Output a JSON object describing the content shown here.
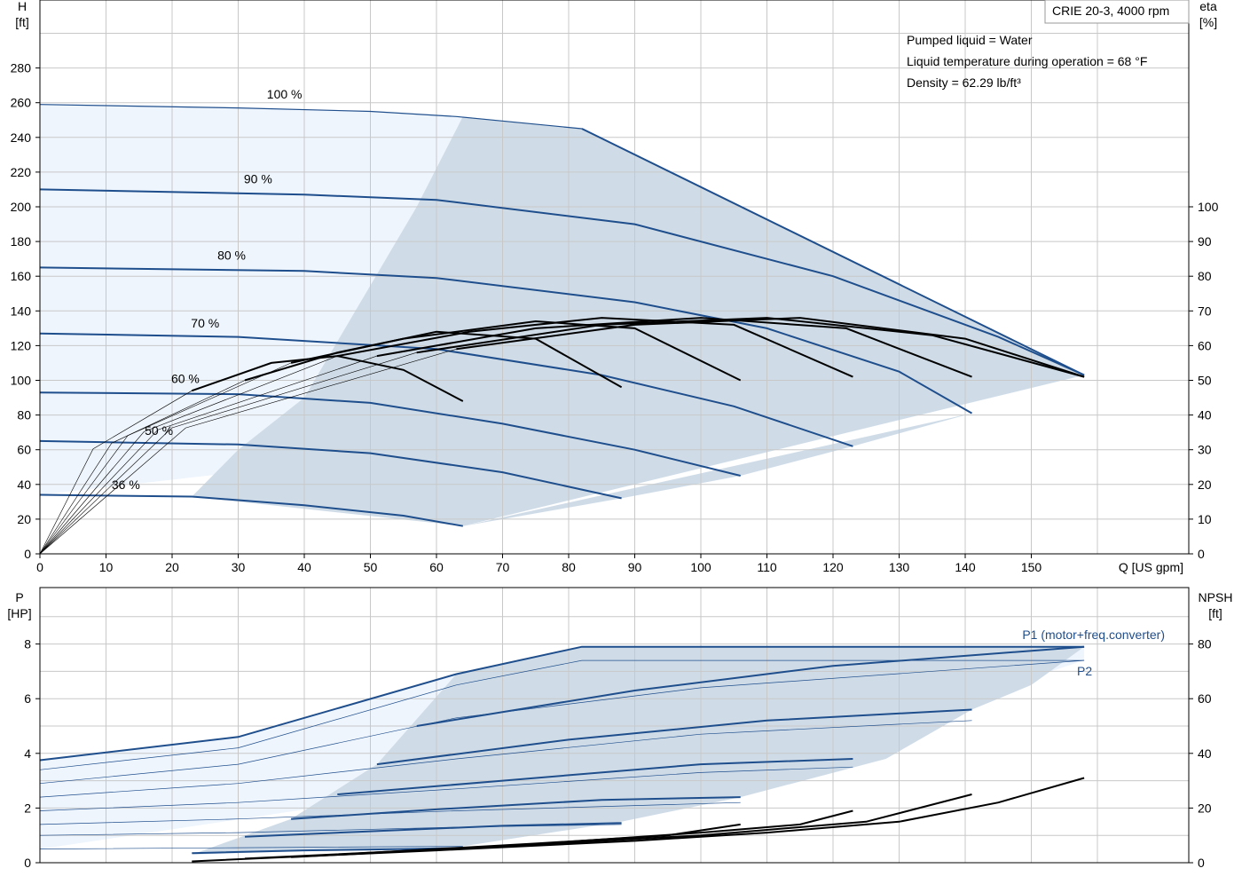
{
  "pump_model": "CRIE 20-3, 4000 rpm",
  "conditions": [
    "Pumped liquid = Water",
    "Liquid temperature during operation = 68 °F",
    "Density = 62.29 lb/ft³"
  ],
  "colors": {
    "curve_blue": "#1f4e8c",
    "area_dark": "#cfdce8",
    "area_light": "#eef5fd",
    "grid": "#c8c8c8"
  },
  "chart_data": [
    {
      "type": "line",
      "title": "",
      "x_axis": {
        "label": "Q [US gpm]",
        "range": [
          0,
          170
        ],
        "ticks": [
          0,
          10,
          20,
          30,
          40,
          50,
          60,
          70,
          80,
          90,
          100,
          110,
          120,
          130,
          140,
          150
        ]
      },
      "y_axis_left": {
        "label_top": "H",
        "label_unit": "[ft]",
        "range": [
          0,
          300
        ],
        "ticks": [
          0,
          20,
          40,
          60,
          80,
          100,
          120,
          140,
          160,
          180,
          200,
          220,
          240,
          260,
          280
        ]
      },
      "y_axis_right": {
        "label_top": "eta",
        "label_unit": "[%]",
        "range": [
          0,
          150
        ],
        "ticks": [
          0,
          10,
          20,
          30,
          40,
          50,
          60,
          70,
          80,
          90,
          100
        ]
      },
      "speed_labels": [
        {
          "text": "100 %",
          "x": 37,
          "y": 265
        },
        {
          "text": "90 %",
          "x": 33,
          "y": 216
        },
        {
          "text": "80 %",
          "x": 29,
          "y": 172
        },
        {
          "text": "70 %",
          "x": 25,
          "y": 133
        },
        {
          "text": "60 %",
          "x": 22,
          "y": 101
        },
        {
          "text": "50 %",
          "x": 18,
          "y": 71
        },
        {
          "text": "36 %",
          "x": 13,
          "y": 40
        }
      ],
      "head_curves": [
        {
          "speed": "100 %",
          "shut_off": 259,
          "points": [
            [
              0,
              259
            ],
            [
              30,
              257
            ],
            [
              50,
              255
            ],
            [
              63,
              252
            ],
            [
              82,
              245
            ]
          ],
          "tail": [
            [
              82,
              245
            ],
            [
              158,
              103
            ]
          ]
        },
        {
          "speed": "90 %",
          "points": [
            [
              0,
              210
            ],
            [
              40,
              207
            ],
            [
              60,
              204
            ],
            [
              90,
              190
            ],
            [
              120,
              160
            ],
            [
              145,
              125
            ],
            [
              158,
              103
            ]
          ]
        },
        {
          "speed": "80 %",
          "points": [
            [
              0,
              165
            ],
            [
              40,
              163
            ],
            [
              60,
              159
            ],
            [
              90,
              145
            ],
            [
              110,
              130
            ],
            [
              130,
              105
            ],
            [
              141,
              81
            ]
          ]
        },
        {
          "speed": "70 %",
          "points": [
            [
              0,
              127
            ],
            [
              30,
              125
            ],
            [
              60,
              118
            ],
            [
              85,
              103
            ],
            [
              105,
              85
            ],
            [
              123,
              62
            ]
          ]
        },
        {
          "speed": "60 %",
          "points": [
            [
              0,
              93
            ],
            [
              30,
              92
            ],
            [
              50,
              87
            ],
            [
              70,
              75
            ],
            [
              90,
              60
            ],
            [
              106,
              45
            ]
          ]
        },
        {
          "speed": "50 %",
          "points": [
            [
              0,
              65
            ],
            [
              30,
              63
            ],
            [
              50,
              58
            ],
            [
              70,
              47
            ],
            [
              88,
              32
            ]
          ]
        },
        {
          "speed": "36 %",
          "points": [
            [
              0,
              34
            ],
            [
              23,
              33
            ],
            [
              40,
              28
            ],
            [
              55,
              22
            ],
            [
              64,
              16
            ]
          ]
        }
      ],
      "eta_curves": [
        {
          "speed": "36 %",
          "points": [
            [
              23,
              47
            ],
            [
              35,
              55
            ],
            [
              45,
              57
            ],
            [
              55,
              53
            ],
            [
              64,
              44
            ]
          ]
        },
        {
          "speed": "50 %",
          "points": [
            [
              31,
              50
            ],
            [
              45,
              58
            ],
            [
              60,
              64
            ],
            [
              75,
              62
            ],
            [
              88,
              48
            ]
          ]
        },
        {
          "speed": "60 %",
          "points": [
            [
              38,
              55
            ],
            [
              55,
              62
            ],
            [
              75,
              67
            ],
            [
              90,
              65
            ],
            [
              106,
              50
            ]
          ]
        },
        {
          "speed": "70 %",
          "points": [
            [
              45,
              57
            ],
            [
              65,
              64
            ],
            [
              85,
              68
            ],
            [
              105,
              66
            ],
            [
              123,
              51
            ]
          ]
        },
        {
          "speed": "80 %",
          "points": [
            [
              51,
              57
            ],
            [
              75,
              65
            ],
            [
              100,
              68
            ],
            [
              122,
              65
            ],
            [
              141,
              51
            ]
          ]
        },
        {
          "speed": "90 %",
          "points": [
            [
              57,
              58
            ],
            [
              85,
              66
            ],
            [
              110,
              68
            ],
            [
              135,
              63
            ],
            [
              158,
              51
            ]
          ]
        },
        {
          "speed": "100 %",
          "points": [
            [
              63,
              59
            ],
            [
              90,
              66
            ],
            [
              115,
              68
            ],
            [
              140,
              62
            ],
            [
              158,
              51
            ]
          ]
        }
      ]
    },
    {
      "type": "line",
      "title": "",
      "x_axis": {
        "range": [
          0,
          170
        ],
        "ticks": []
      },
      "y_axis_left": {
        "label_top": "P",
        "label_unit": "[HP]",
        "range": [
          0,
          9
        ],
        "ticks": [
          0,
          2,
          4,
          6,
          8
        ]
      },
      "y_axis_right": {
        "label_top": "NPSH",
        "label_unit": "[ft]",
        "range": [
          0,
          90
        ],
        "ticks": [
          0,
          20,
          40,
          60,
          80
        ]
      },
      "series_labels": [
        {
          "text": "P1 (motor+freq.converter)"
        },
        {
          "text": "P2"
        }
      ],
      "p1_curves": [
        {
          "speed": "100 %",
          "points": [
            [
              0,
              3.75
            ],
            [
              30,
              4.6
            ],
            [
              63,
              6.9
            ],
            [
              82,
              7.9
            ],
            [
              158,
              7.9
            ]
          ]
        },
        {
          "speed": "90 %",
          "points": [
            [
              57,
              5.0
            ],
            [
              90,
              6.3
            ],
            [
              120,
              7.2
            ],
            [
              158,
              7.9
            ]
          ]
        },
        {
          "speed": "80 %",
          "points": [
            [
              51,
              3.6
            ],
            [
              80,
              4.5
            ],
            [
              110,
              5.2
            ],
            [
              141,
              5.6
            ]
          ]
        },
        {
          "speed": "70 %",
          "points": [
            [
              45,
              2.5
            ],
            [
              70,
              3.0
            ],
            [
              100,
              3.6
            ],
            [
              123,
              3.8
            ]
          ]
        },
        {
          "speed": "60 %",
          "points": [
            [
              38,
              1.6
            ],
            [
              60,
              1.95
            ],
            [
              85,
              2.3
            ],
            [
              106,
              2.4
            ]
          ]
        },
        {
          "speed": "50 %",
          "points": [
            [
              31,
              0.95
            ],
            [
              50,
              1.15
            ],
            [
              70,
              1.35
            ],
            [
              88,
              1.45
            ]
          ]
        },
        {
          "speed": "36 %",
          "points": [
            [
              23,
              0.35
            ],
            [
              40,
              0.45
            ],
            [
              55,
              0.5
            ],
            [
              64,
              0.55
            ]
          ]
        }
      ],
      "p2_curves": [
        {
          "speed": "100 %",
          "points": [
            [
              0,
              3.4
            ],
            [
              30,
              4.2
            ],
            [
              63,
              6.5
            ],
            [
              82,
              7.4
            ],
            [
              158,
              7.4
            ]
          ]
        },
        {
          "speed": "90 %",
          "points": [
            [
              0,
              2.9
            ],
            [
              30,
              3.6
            ],
            [
              63,
              5.3
            ],
            [
              100,
              6.4
            ],
            [
              158,
              7.4
            ]
          ]
        },
        {
          "speed": "80 %",
          "points": [
            [
              0,
              2.4
            ],
            [
              30,
              2.9
            ],
            [
              63,
              3.8
            ],
            [
              100,
              4.7
            ],
            [
              141,
              5.2
            ]
          ]
        },
        {
          "speed": "70 %",
          "points": [
            [
              0,
              1.9
            ],
            [
              30,
              2.2
            ],
            [
              63,
              2.7
            ],
            [
              100,
              3.3
            ],
            [
              123,
              3.5
            ]
          ]
        },
        {
          "speed": "60 %",
          "points": [
            [
              0,
              1.4
            ],
            [
              30,
              1.6
            ],
            [
              63,
              1.9
            ],
            [
              106,
              2.2
            ]
          ]
        },
        {
          "speed": "50 %",
          "points": [
            [
              0,
              1.0
            ],
            [
              30,
              1.1
            ],
            [
              63,
              1.3
            ],
            [
              88,
              1.4
            ]
          ]
        },
        {
          "speed": "36 %",
          "points": [
            [
              0,
              0.5
            ],
            [
              30,
              0.55
            ],
            [
              64,
              0.6
            ]
          ]
        }
      ],
      "npsh_curves": [
        {
          "speed": "100 %",
          "points": [
            [
              23,
              0.5
            ],
            [
              60,
              4.5
            ],
            [
              90,
              8
            ],
            [
              110,
              11
            ],
            [
              130,
              15
            ],
            [
              145,
              22
            ],
            [
              158,
              31
            ]
          ]
        },
        {
          "speed": "90 %",
          "points": [
            [
              31,
              1.5
            ],
            [
              70,
              6
            ],
            [
              100,
              10
            ],
            [
              125,
              15
            ],
            [
              141,
              25
            ]
          ]
        },
        {
          "speed": "80 %",
          "points": [
            [
              38,
              2
            ],
            [
              70,
              6
            ],
            [
              100,
              11
            ],
            [
              115,
              14
            ],
            [
              123,
              19
            ]
          ]
        },
        {
          "speed": "70 %",
          "points": [
            [
              45,
              3
            ],
            [
              75,
              7
            ],
            [
              95,
              10
            ],
            [
              106,
              14
            ]
          ]
        }
      ]
    }
  ]
}
